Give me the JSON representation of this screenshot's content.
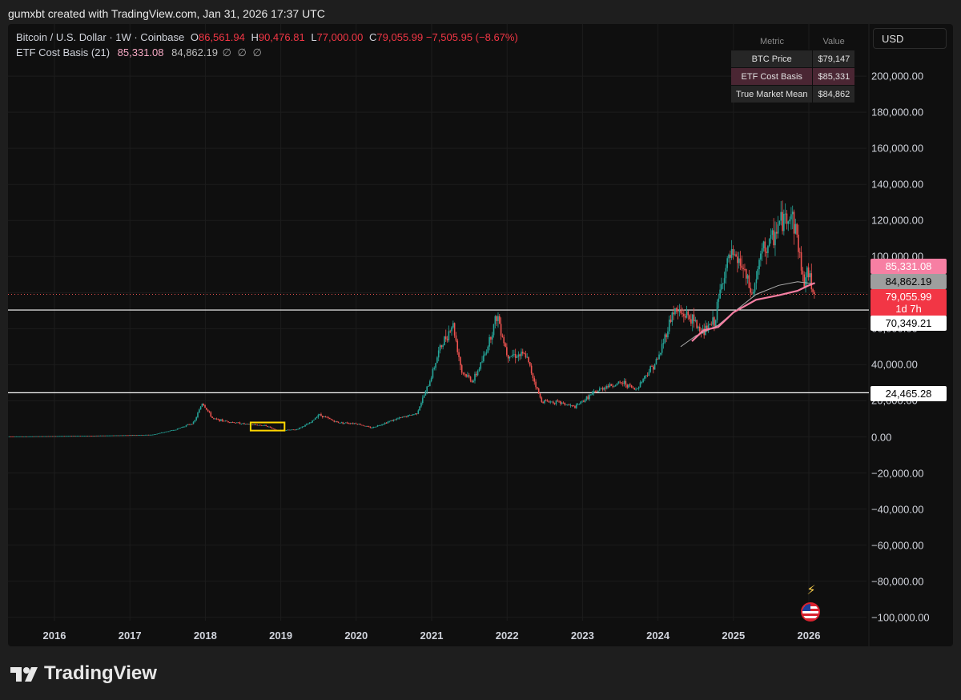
{
  "header": {
    "credit": "gumxbt created with TradingView.com, Jan 31, 2026 17:37 UTC"
  },
  "legend": {
    "symbol": "Bitcoin / U.S. Dollar · 1W · Coinbase",
    "o_label": "O",
    "o_value": "86,561.94",
    "h_label": "H",
    "h_value": "90,476.81",
    "l_label": "L",
    "l_value": "77,000.00",
    "c_label": "C",
    "c_value": "79,055.99",
    "change": "−7,505.95 (−8.67%)",
    "indicator_name": "ETF Cost Basis (21)",
    "indicator_value1": "85,331.08",
    "indicator_value2": "84,862.19",
    "indicator_glyphs": "∅ ∅ ∅"
  },
  "metric_table": {
    "header_metric": "Metric",
    "header_value": "Value",
    "rows": [
      {
        "metric": "BTC Price",
        "value": "$79,147"
      },
      {
        "metric": "ETF Cost Basis",
        "value": "$85,331"
      },
      {
        "metric": "True Market Mean",
        "value": "$84,862"
      }
    ]
  },
  "currency_button": "USD",
  "price_boxes": {
    "etf_cost_basis": "85,331.08",
    "true_market_mean": "84,862.19",
    "close": "79,055.99",
    "countdown": "1d 7h",
    "upper_level": "70,349.21",
    "lower_level": "24,465.28"
  },
  "footer": {
    "brand": "TradingView"
  },
  "icons": {
    "flash": "flash-icon",
    "flag": "us-flag-icon",
    "logo": "tradingview-logo-icon"
  },
  "colors": {
    "up": "#26a69a",
    "down": "#ef5350",
    "etf_line": "#f77fa3",
    "mean_line": "#b0b0b0",
    "highlight_box": "#ffd700",
    "level_line": "#ffffff"
  },
  "chart_data": {
    "type": "candlestick",
    "symbol": "BTCUSD",
    "interval": "1W",
    "x_ticks": [
      "2016",
      "2017",
      "2018",
      "2019",
      "2020",
      "2021",
      "2022",
      "2023",
      "2024",
      "2025",
      "2026"
    ],
    "y_ticks": [
      "200,000.00",
      "180,000.00",
      "160,000.00",
      "140,000.00",
      "120,000.00",
      "100,000.00",
      "80,000.00",
      "60,000.00",
      "40,000.00",
      "20,000.00",
      "0.00",
      "−20,000.00",
      "−40,000.00",
      "−60,000.00",
      "−80,000.00",
      "−100,000.00"
    ],
    "ylim": [
      -100000,
      200000
    ],
    "grid": true,
    "price_path": [
      [
        2015.6,
        250
      ],
      [
        2016.0,
        430
      ],
      [
        2016.5,
        650
      ],
      [
        2017.0,
        950
      ],
      [
        2017.3,
        1200
      ],
      [
        2017.6,
        4000
      ],
      [
        2017.85,
        8000
      ],
      [
        2017.96,
        19000
      ],
      [
        2018.1,
        10000
      ],
      [
        2018.3,
        8500
      ],
      [
        2018.55,
        7000
      ],
      [
        2018.8,
        6300
      ],
      [
        2018.95,
        3600
      ],
      [
        2019.2,
        4000
      ],
      [
        2019.4,
        8000
      ],
      [
        2019.5,
        12500
      ],
      [
        2019.75,
        8000
      ],
      [
        2020.0,
        7500
      ],
      [
        2020.2,
        5000
      ],
      [
        2020.5,
        9500
      ],
      [
        2020.8,
        13000
      ],
      [
        2020.96,
        29000
      ],
      [
        2021.1,
        48000
      ],
      [
        2021.28,
        63000
      ],
      [
        2021.4,
        36000
      ],
      [
        2021.55,
        31000
      ],
      [
        2021.7,
        45000
      ],
      [
        2021.87,
        68000
      ],
      [
        2022.0,
        46000
      ],
      [
        2022.25,
        45000
      ],
      [
        2022.45,
        20000
      ],
      [
        2022.7,
        19000
      ],
      [
        2022.9,
        16500
      ],
      [
        2023.1,
        23000
      ],
      [
        2023.3,
        28000
      ],
      [
        2023.55,
        30000
      ],
      [
        2023.7,
        26000
      ],
      [
        2023.85,
        35000
      ],
      [
        2024.0,
        43000
      ],
      [
        2024.2,
        70000
      ],
      [
        2024.4,
        67000
      ],
      [
        2024.6,
        58000
      ],
      [
        2024.75,
        64000
      ],
      [
        2024.87,
        90000
      ],
      [
        2024.96,
        100000
      ],
      [
        2025.1,
        96000
      ],
      [
        2025.25,
        78000
      ],
      [
        2025.38,
        103000
      ],
      [
        2025.5,
        108000
      ],
      [
        2025.6,
        118000
      ],
      [
        2025.77,
        124000
      ],
      [
        2025.85,
        110000
      ],
      [
        2025.92,
        87000
      ],
      [
        2026.0,
        90000
      ],
      [
        2026.08,
        79056
      ]
    ],
    "series": [
      {
        "name": "ETF Cost Basis (21)",
        "last": 85331.08,
        "points": [
          [
            2024.45,
            53000
          ],
          [
            2024.6,
            59000
          ],
          [
            2024.8,
            61000
          ],
          [
            2025.0,
            69000
          ],
          [
            2025.3,
            76000
          ],
          [
            2025.6,
            78500
          ],
          [
            2025.85,
            81000
          ],
          [
            2026.0,
            84000
          ],
          [
            2026.08,
            85331
          ]
        ]
      },
      {
        "name": "True Market Mean",
        "last": 84862.19,
        "points": [
          [
            2024.3,
            50000
          ],
          [
            2024.5,
            56000
          ],
          [
            2024.8,
            62000
          ],
          [
            2025.0,
            69000
          ],
          [
            2025.3,
            79000
          ],
          [
            2025.6,
            84000
          ],
          [
            2025.85,
            86000
          ],
          [
            2026.08,
            84862
          ]
        ]
      }
    ],
    "horizontal_lines": [
      70349.21,
      24465.28
    ],
    "current_price_line": 79055.99,
    "highlight_box": {
      "x": [
        2018.6,
        2019.05
      ],
      "y": [
        3500,
        8000
      ]
    }
  }
}
